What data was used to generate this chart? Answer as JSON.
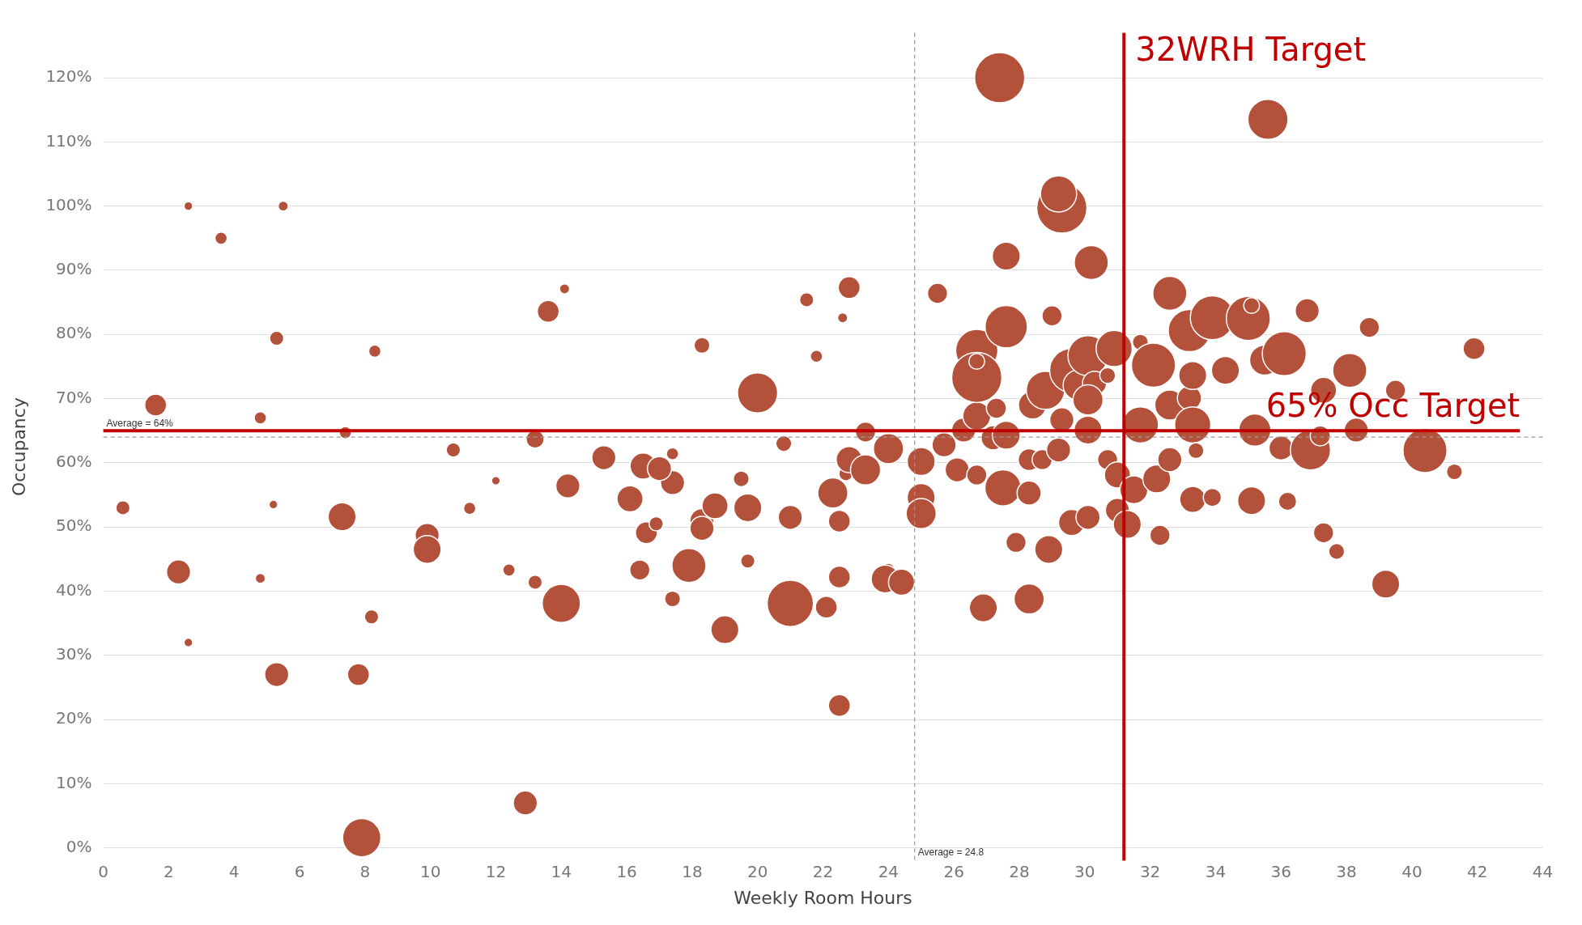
{
  "chart_data": {
    "type": "bubble",
    "xlabel": "Weekly Room Hours",
    "ylabel": "Occupancy",
    "xlim": [
      0,
      44
    ],
    "ylim": [
      -2,
      127
    ],
    "xticks": [
      0,
      2,
      4,
      6,
      8,
      10,
      12,
      14,
      16,
      18,
      20,
      22,
      24,
      26,
      28,
      30,
      32,
      34,
      36,
      38,
      40,
      42,
      44
    ],
    "yticks": [
      {
        "value": 0,
        "label": "0%"
      },
      {
        "value": 10,
        "label": "10%"
      },
      {
        "value": 20,
        "label": "20%"
      },
      {
        "value": 30,
        "label": "30%"
      },
      {
        "value": 40,
        "label": "40%"
      },
      {
        "value": 50,
        "label": "50%"
      },
      {
        "value": 60,
        "label": "60%"
      },
      {
        "value": 70,
        "label": "70%"
      },
      {
        "value": 80,
        "label": "80%"
      },
      {
        "value": 90,
        "label": "90%"
      },
      {
        "value": 100,
        "label": "100%"
      },
      {
        "value": 110,
        "label": "110%"
      },
      {
        "value": 120,
        "label": "120%"
      }
    ],
    "grid": "y",
    "legend": false,
    "series": [
      {
        "color": "#b4513a",
        "x": [
          2.6,
          5.5,
          3.6,
          1.6,
          4.8,
          0.6,
          2.3,
          4.8,
          2.6,
          5.3,
          5.2,
          5.3,
          8.3,
          7.3,
          7.4,
          7.8,
          8.2,
          7.9,
          9.9,
          9.9,
          10.7,
          11.2,
          12.0,
          12.4,
          13.2,
          12.9,
          13.2,
          13.6,
          14.1,
          14.2,
          14.0,
          15.3,
          16.1,
          16.5,
          16.6,
          16.4,
          17.4,
          17.4,
          17.0,
          16.9,
          17.4,
          18.3,
          17.9,
          18.3,
          18.3,
          18.7,
          19.5,
          19.7,
          19.0,
          19.7,
          20.0,
          20.8,
          21.0,
          21.0,
          21.5,
          21.8,
          22.1,
          22.5,
          22.3,
          22.5,
          22.5,
          22.6,
          22.8,
          22.7,
          22.8,
          23.3,
          23.3,
          24.0,
          24.0,
          23.9,
          24.4,
          25.0,
          25.0,
          25.0,
          25.5,
          25.7,
          26.1,
          26.3,
          26.7,
          26.7,
          26.9,
          26.7,
          26.7,
          26.7,
          27.3,
          27.2,
          27.4,
          27.6,
          27.6,
          27.5,
          27.6,
          27.9,
          28.3,
          28.4,
          28.3,
          28.3,
          28.7,
          28.9,
          28.8,
          29.0,
          29.2,
          29.3,
          29.2,
          29.3,
          29.6,
          29.6,
          29.8,
          30.2,
          30.1,
          30.1,
          30.3,
          30.1,
          30.1,
          30.7,
          30.9,
          30.7,
          31.0,
          31.0,
          31.3,
          31.5,
          31.7,
          31.7,
          32.1,
          32.2,
          32.3,
          32.6,
          32.6,
          32.6,
          33.2,
          33.2,
          33.3,
          33.3,
          33.4,
          33.3,
          33.9,
          33.9,
          34.3,
          35.0,
          35.1,
          35.2,
          35.1,
          35.5,
          35.6,
          36.0,
          36.1,
          36.2,
          36.8,
          36.9,
          37.3,
          37.2,
          37.3,
          37.7,
          38.1,
          38.3,
          38.7,
          39.2,
          39.5,
          40.4,
          41.9,
          41.3
        ],
        "values": [
          100,
          100,
          95,
          69,
          67,
          53,
          43,
          42,
          32,
          27,
          53.5,
          79.4,
          77.4,
          51.6,
          64.7,
          27,
          36,
          1.6,
          48.7,
          46.5,
          62,
          52.9,
          57.2,
          43.3,
          41.4,
          7,
          63.7,
          83.6,
          87.1,
          56.4,
          38.1,
          60.8,
          54.4,
          59.5,
          49.1,
          43.3,
          61.4,
          56.9,
          59.1,
          50.5,
          38.8,
          78.3,
          44,
          51,
          49.8,
          53.3,
          57.5,
          53,
          34,
          44.7,
          70.9,
          63,
          51.5,
          38.1,
          85.4,
          76.6,
          37.5,
          50.9,
          55.3,
          42.2,
          22.2,
          82.6,
          87.3,
          58.3,
          60.5,
          58.9,
          64.8,
          62.2,
          43.4,
          41.9,
          41.4,
          60.2,
          54.6,
          52.1,
          86.4,
          62.8,
          58.9,
          65.1,
          67.3,
          58.1,
          37.4,
          77.5,
          73.3,
          75.8,
          68.5,
          63.9,
          120,
          92.2,
          81.2,
          56.1,
          64.3,
          47.6,
          38.8,
          69,
          60.5,
          55.3,
          60.5,
          46.5,
          71.3,
          82.9,
          62,
          99.7,
          101.9,
          66.7,
          74.4,
          50.7,
          72.1,
          91.2,
          76.7,
          65.1,
          72.4,
          69.8,
          51.5,
          73.6,
          77.8,
          60.5,
          58.1,
          52.6,
          50.4,
          55.8,
          78.8,
          65.9,
          75.2,
          57.5,
          48.7,
          86.4,
          69,
          60.5,
          80.6,
          70.1,
          65.9,
          73.6,
          61.9,
          54.3,
          82.6,
          54.6,
          74.4,
          82.5,
          84.5,
          65.1,
          54.1,
          76,
          113.5,
          62.3,
          77,
          54,
          83.7,
          62,
          71.3,
          64.2,
          49.1,
          46.2,
          74.4,
          65.1,
          81.1,
          41.1,
          71.3,
          61.9,
          77.8,
          58.6
        ],
        "sizes": [
          0.03,
          0.04,
          0.06,
          0.19,
          0.06,
          0.08,
          0.23,
          0.04,
          0.03,
          0.23,
          0.03,
          0.08,
          0.06,
          0.31,
          0.06,
          0.19,
          0.08,
          0.58,
          0.23,
          0.31,
          0.08,
          0.06,
          0.03,
          0.06,
          0.08,
          0.23,
          0.13,
          0.19,
          0.04,
          0.23,
          0.58,
          0.23,
          0.27,
          0.27,
          0.19,
          0.16,
          0.06,
          0.23,
          0.23,
          0.08,
          0.1,
          0.1,
          0.46,
          0.23,
          0.23,
          0.27,
          0.1,
          0.31,
          0.31,
          0.08,
          0.64,
          0.1,
          0.23,
          0.85,
          0.08,
          0.06,
          0.19,
          0.19,
          0.36,
          0.19,
          0.19,
          0.04,
          0.19,
          0.08,
          0.27,
          0.36,
          0.16,
          0.36,
          0.06,
          0.31,
          0.27,
          0.31,
          0.31,
          0.36,
          0.16,
          0.23,
          0.23,
          0.23,
          0.31,
          0.16,
          0.31,
          0.71,
          1,
          0.1,
          0.16,
          0.23,
          1,
          0.31,
          0.71,
          0.52,
          0.31,
          0.16,
          0.36,
          0.31,
          0.19,
          0.23,
          0.16,
          0.31,
          0.58,
          0.16,
          0.23,
          1,
          0.52,
          0.23,
          0.77,
          0.27,
          0.36,
          0.46,
          0.64,
          0.31,
          0.23,
          0.36,
          0.23,
          0.1,
          0.52,
          0.16,
          0.27,
          0.23,
          0.31,
          0.31,
          0.1,
          0.52,
          0.77,
          0.31,
          0.16,
          0.46,
          0.36,
          0.23,
          0.71,
          0.23,
          0.52,
          0.31,
          0.1,
          0.27,
          0.77,
          0.13,
          0.31,
          0.77,
          0.1,
          0.41,
          0.31,
          0.36,
          0.64,
          0.23,
          0.77,
          0.13,
          0.23,
          0.64,
          0.27,
          0.16,
          0.16,
          0.1,
          0.46,
          0.23,
          0.16,
          0.31,
          0.16,
          0.77,
          0.19,
          0.1
        ]
      }
    ],
    "ref_lines": [
      {
        "axis": "x",
        "value": 24.8,
        "label": "Average = 24.8",
        "color": "#999999",
        "line_style": "dashed"
      },
      {
        "axis": "y",
        "value": 64,
        "label": "Average = 64%",
        "color": "#999999",
        "line_style": "dashed"
      },
      {
        "axis": "x",
        "value": 31.2,
        "label": "32WRH Target",
        "color": "#c00000",
        "line_style": "solid"
      },
      {
        "axis": "y",
        "value": 65,
        "label": "65% Occ Target",
        "color": "#c00000",
        "line_style": "solid"
      }
    ]
  }
}
